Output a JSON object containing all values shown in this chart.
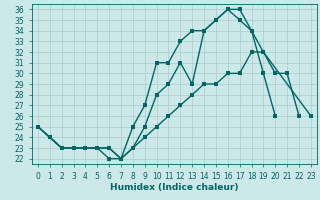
{
  "xlabel": "Humidex (Indice chaleur)",
  "bg_color": "#cce8e8",
  "grid_color": "#aacccc",
  "line_color": "#006666",
  "xlim": [
    -0.5,
    23.5
  ],
  "ylim": [
    21.5,
    36.5
  ],
  "xticks": [
    0,
    1,
    2,
    3,
    4,
    5,
    6,
    7,
    8,
    9,
    10,
    11,
    12,
    13,
    14,
    15,
    16,
    17,
    18,
    19,
    20,
    21,
    22,
    23
  ],
  "yticks": [
    22,
    23,
    24,
    25,
    26,
    27,
    28,
    29,
    30,
    31,
    32,
    33,
    34,
    35,
    36
  ],
  "line1": {
    "x": [
      0,
      1,
      2,
      3,
      4,
      5,
      6,
      7,
      8,
      9,
      10,
      11,
      12,
      13,
      14,
      15,
      16,
      17,
      18,
      19,
      20,
      21,
      22
    ],
    "y": [
      25,
      24,
      23,
      23,
      23,
      23,
      23,
      22,
      25,
      27,
      31,
      31,
      33,
      34,
      34,
      35,
      36,
      36,
      34,
      32,
      30,
      30,
      26
    ]
  },
  "line2": {
    "x": [
      0,
      1,
      2,
      3,
      4,
      5,
      6,
      7,
      8,
      9,
      10,
      11,
      12,
      13,
      14,
      15,
      16,
      17,
      18,
      19,
      20,
      21,
      22,
      23
    ],
    "y": [
      25,
      24,
      23,
      23,
      23,
      23,
      23,
      22,
      23,
      25,
      28,
      29,
      31,
      29,
      34,
      35,
      36,
      35,
      34,
      30,
      26,
      null,
      null,
      26
    ]
  },
  "line3": {
    "x": [
      0,
      1,
      2,
      3,
      4,
      5,
      6,
      7,
      8,
      9,
      10,
      11,
      12,
      13,
      14,
      15,
      16,
      17,
      18,
      19,
      23
    ],
    "y": [
      25,
      24,
      23,
      23,
      23,
      23,
      22,
      22,
      23,
      24,
      25,
      26,
      27,
      28,
      29,
      29,
      30,
      30,
      32,
      32,
      26
    ]
  },
  "marker_size": 2.5,
  "line_width": 1.0,
  "font_size_tick": 5.5,
  "font_size_label": 6.5
}
